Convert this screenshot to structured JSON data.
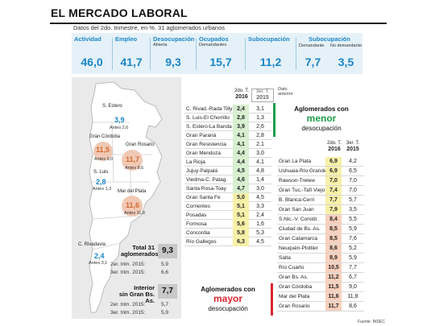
{
  "title": "EL MERCADO LABORAL",
  "subtitle": "Datos del 2do. trimestre, en %. 31 aglomerados urbanos",
  "source": "Fuente: INDEC",
  "indicators": {
    "actividad": {
      "label": "Actividad",
      "sub": "",
      "value": "46,0"
    },
    "empleo": {
      "label": "Empleo",
      "sub": "",
      "value": "41,7"
    },
    "desocupacion": {
      "label": "Desocupación",
      "sub": "Abierta",
      "value": "9,3"
    },
    "ocupados": {
      "label": "Ocupados",
      "sub": "Demandantes",
      "value": "15,7"
    },
    "subocupacion": {
      "label": "Subocupación",
      "sub": "",
      "value": "11,2"
    },
    "subocupacion_group": {
      "label": "Subocupación"
    },
    "demandante": {
      "sub": "Demandante",
      "value": "7,7"
    },
    "no_demandante": {
      "sub": "No demandante",
      "value": "3,5"
    }
  },
  "map": {
    "santiago": {
      "label": "S. Estero",
      "value": "3,9",
      "before": "Antes 2,6"
    },
    "cordoba": {
      "label": "Gran Córdoba",
      "value": "11,5",
      "before": "Antes 9,0"
    },
    "rosario": {
      "label": "Gran Rosario",
      "value": "11,7",
      "before": "Antes 8,6"
    },
    "sanluis": {
      "label": "S. Luis",
      "value": "2,8",
      "before": "Antes 1,3"
    },
    "mardelplata": {
      "label": "Mar del Plata",
      "value": "11,6",
      "before": "Antes 11,8"
    },
    "rivadavia": {
      "label": "C. Rivadavia",
      "value": "2,4",
      "before": "Antes 3,1"
    }
  },
  "totals": {
    "total": {
      "label_1": "Total 31",
      "label_2": "aglomerados",
      "value": "9,3",
      "trim2": "2er. trim. 2015:",
      "trim2_val": "5,9",
      "trim3": "3er. trim. 2015:",
      "trim3_val": "6,6"
    },
    "interior": {
      "label_1": "Interior",
      "label_2": "sin Gran Bs. As.",
      "value": "7,7",
      "trim2": "2er. trim. 2015:",
      "trim2_val": "5,7",
      "trim3": "3er. trim. 2015:",
      "trim3_val": "5,9"
    }
  },
  "table_headers": {
    "col1_line1": "2do. T.",
    "col1_line2": "2016",
    "col2_line1": "3er. T.",
    "col2_line2": "2015",
    "dato_1": "Dato",
    "dato_2": "anterior"
  },
  "callouts": {
    "menor": {
      "line1": "Aglomerados con",
      "big": "menor",
      "line2": "desocupación"
    },
    "mayor": {
      "line1": "Aglomerados con",
      "big": "mayor",
      "line2": "desocupación"
    }
  },
  "colors": {
    "accent": "#1a86c6",
    "green": "#1e9e4a",
    "red": "#d8262d",
    "low": "#d8efd0",
    "mid": "#f7f0a8",
    "high": "#f9d0bc"
  },
  "chart_data": {
    "type": "table",
    "columns": [
      "Aglomerado",
      "2do. T. 2016",
      "3er. T. 2015"
    ],
    "left_table": [
      {
        "name": "C. Rivad.-Rada Tilly",
        "t2016": "2,4",
        "t2015": "3,1",
        "tone": "low"
      },
      {
        "name": "S. Luis-El Chorrillo",
        "t2016": "2,8",
        "t2015": "1,3",
        "tone": "low"
      },
      {
        "name": "S. Estero-La Banda",
        "t2016": "3,9",
        "t2015": "2,6",
        "tone": "low"
      },
      {
        "name": "Gran Paraná",
        "t2016": "4,1",
        "t2015": "2,8",
        "tone": "low"
      },
      {
        "name": "Gran Resistencia",
        "t2016": "4,1",
        "t2015": "2,1",
        "tone": "low"
      },
      {
        "name": "Gran Mendoza",
        "t2016": "4,4",
        "t2015": "3,0",
        "tone": "low"
      },
      {
        "name": "La Rioja",
        "t2016": "4,4",
        "t2015": "4,1",
        "tone": "low"
      },
      {
        "name": "Jujuy-Palpalá",
        "t2016": "4,5",
        "t2015": "4,8",
        "tone": "low"
      },
      {
        "name": "Viedma-C. Patag.",
        "t2016": "4,6",
        "t2015": "1,4",
        "tone": "low"
      },
      {
        "name": "Santa Rosa-Toay",
        "t2016": "4,7",
        "t2015": "3,0",
        "tone": "low"
      },
      {
        "name": "Gran Santa Fe",
        "t2016": "5,0",
        "t2015": "4,5",
        "tone": "mid"
      },
      {
        "name": "Corrientes",
        "t2016": "5,1",
        "t2015": "3,3",
        "tone": "mid"
      },
      {
        "name": "Posadas",
        "t2016": "5,1",
        "t2015": "2,4",
        "tone": "mid"
      },
      {
        "name": "Formosa",
        "t2016": "5,6",
        "t2015": "1,6",
        "tone": "mid"
      },
      {
        "name": "Concordia",
        "t2016": "5,8",
        "t2015": "5,3",
        "tone": "mid"
      },
      {
        "name": "Río Gallegos",
        "t2016": "6,3",
        "t2015": "4,5",
        "tone": "mid"
      }
    ],
    "right_table": [
      {
        "name": "Gran La Plata",
        "t2016": "6,9",
        "t2015": "4,2",
        "tone": "mid"
      },
      {
        "name": "Ushuaia-Río Grande",
        "t2016": "6,9",
        "t2015": "6,5",
        "tone": "mid"
      },
      {
        "name": "Rawson-Trelew",
        "t2016": "7,0",
        "t2015": "7,0",
        "tone": "mid"
      },
      {
        "name": "Gran Tuc.-Tafí Viejo",
        "t2016": "7,4",
        "t2015": "7,0",
        "tone": "mid"
      },
      {
        "name": "B. Blanca-Cerri",
        "t2016": "7,7",
        "t2015": "5,7",
        "tone": "mid"
      },
      {
        "name": "Gran San Juan",
        "t2016": "7,9",
        "t2015": "3,5",
        "tone": "mid"
      },
      {
        "name": "S.Nic.-V. Constit.",
        "t2016": "8,4",
        "t2015": "5,5",
        "tone": "high"
      },
      {
        "name": "Ciudad de Bs. As.",
        "t2016": "8,5",
        "t2015": "5,9",
        "tone": "high"
      },
      {
        "name": "Gran Catamarca",
        "t2016": "8,5",
        "t2015": "7,6",
        "tone": "high"
      },
      {
        "name": "Neuquén-Plottier",
        "t2016": "8,6",
        "t2015": "5,2",
        "tone": "high"
      },
      {
        "name": "Salta",
        "t2016": "8,9",
        "t2015": "5,9",
        "tone": "high"
      },
      {
        "name": "Río Cuarto",
        "t2016": "10,5",
        "t2015": "7,7",
        "tone": "high"
      },
      {
        "name": "Gran Bs. As.",
        "t2016": "11,2",
        "t2015": "6,7",
        "tone": "high"
      },
      {
        "name": "Gran Córdoba",
        "t2016": "11,5",
        "t2015": "9,0",
        "tone": "high"
      },
      {
        "name": "Mar del Plata",
        "t2016": "11,6",
        "t2015": "11,8",
        "tone": "high"
      },
      {
        "name": "Gran Rosario",
        "t2016": "11,7",
        "t2015": "8,6",
        "tone": "high"
      }
    ]
  }
}
